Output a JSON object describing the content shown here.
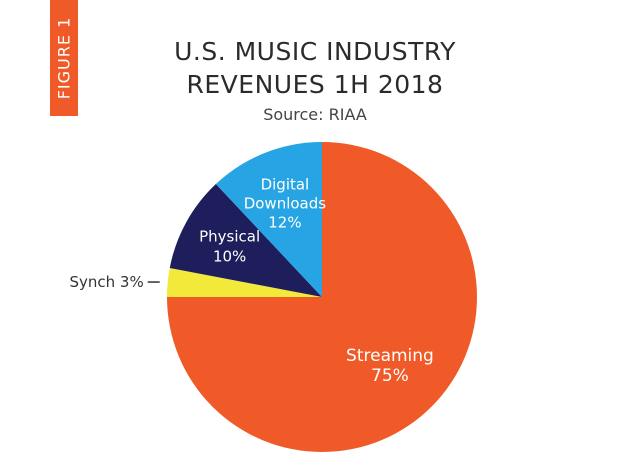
{
  "figure_tag": "FIGURE 1",
  "title_line1": "U.S. MUSIC INDUSTRY",
  "title_line2": "REVENUES 1H 2018",
  "source": "Source: RIAA",
  "colors": {
    "tag": "#f05a28",
    "streaming": "#f05a28",
    "synch": "#f3e93a",
    "physical": "#1e1e5c",
    "digital_downloads": "#27a4e3"
  },
  "chart_data": {
    "type": "pie",
    "title": "U.S. MUSIC INDUSTRY REVENUES 1H 2018",
    "subtitle": "Source: RIAA",
    "slices": [
      {
        "name": "Streaming",
        "value": 75,
        "label_lines": [
          "Streaming",
          "75%"
        ],
        "color": "#f05a28"
      },
      {
        "name": "Synch",
        "value": 3,
        "label_lines": [
          "Synch 3%"
        ],
        "color": "#f3e93a",
        "label_outside": true
      },
      {
        "name": "Physical",
        "value": 10,
        "label_lines": [
          "Physical",
          "10%"
        ],
        "color": "#1e1e5c"
      },
      {
        "name": "Digital Downloads",
        "value": 12,
        "label_lines": [
          "Digital",
          "Downloads",
          "12%"
        ],
        "color": "#27a4e3"
      }
    ]
  }
}
